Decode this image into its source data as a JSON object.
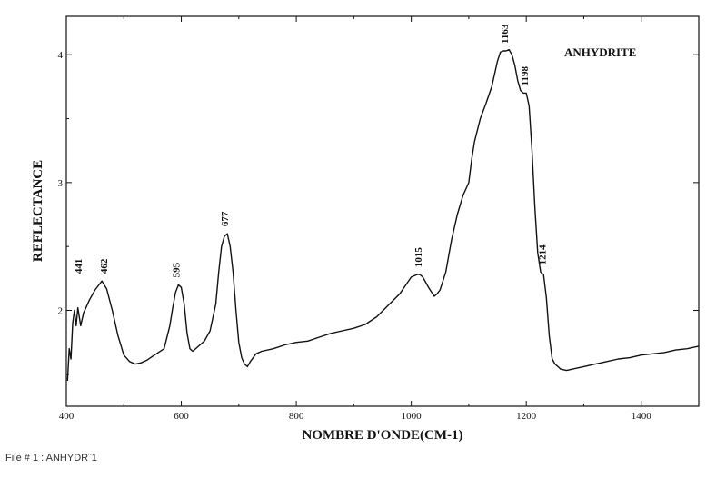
{
  "chart_data": {
    "type": "line",
    "title": "ANHYDRITE",
    "xlabel": "NOMBRE D'ONDE(CM-1)",
    "ylabel": "REFLECTANCE",
    "xlim": [
      400,
      1500
    ],
    "ylim": [
      1.25,
      4.3
    ],
    "x_ticks": [
      400,
      600,
      800,
      1000,
      1200,
      1400
    ],
    "y_ticks": [
      2,
      3,
      4
    ],
    "peak_labels": [
      {
        "text": "441",
        "x": 441,
        "y": 2.23
      },
      {
        "text": "462",
        "x": 462,
        "y": 2.23
      },
      {
        "text": "595",
        "x": 597,
        "y": 2.2
      },
      {
        "text": "677",
        "x": 681,
        "y": 2.6
      },
      {
        "text": "1015",
        "x": 1018,
        "y": 2.28
      },
      {
        "text": "1163",
        "x": 1168,
        "y": 4.03
      },
      {
        "text": "1198",
        "x": 1203,
        "y": 3.7
      },
      {
        "text": "1214",
        "x": 1234,
        "y": 2.3
      }
    ],
    "series": [
      {
        "x": [
          402,
          405,
          408,
          411,
          414,
          417,
          420,
          425,
          430,
          440,
          450,
          462,
          470,
          480,
          490,
          500,
          510,
          520,
          530,
          540,
          550,
          560,
          570,
          580,
          585,
          590,
          595,
          600,
          605,
          610,
          615,
          620,
          630,
          640,
          650,
          660,
          665,
          670,
          675,
          680,
          685,
          690,
          695,
          700,
          705,
          710,
          715,
          720,
          730,
          740,
          760,
          780,
          800,
          820,
          840,
          860,
          880,
          900,
          920,
          940,
          960,
          980,
          1000,
          1010,
          1015,
          1020,
          1025,
          1030,
          1040,
          1045,
          1050,
          1060,
          1070,
          1080,
          1090,
          1100,
          1105,
          1110,
          1120,
          1130,
          1140,
          1150,
          1155,
          1160,
          1165,
          1170,
          1175,
          1180,
          1185,
          1190,
          1195,
          1200,
          1205,
          1210,
          1215,
          1220,
          1225,
          1230,
          1235,
          1240,
          1245,
          1250,
          1255,
          1260,
          1270,
          1280,
          1290,
          1300,
          1320,
          1340,
          1360,
          1380,
          1400,
          1420,
          1440,
          1460,
          1480,
          1500
        ],
        "y": [
          1.45,
          1.7,
          1.62,
          1.9,
          2.0,
          1.88,
          2.02,
          1.88,
          1.98,
          2.08,
          2.16,
          2.23,
          2.17,
          2.0,
          1.8,
          1.65,
          1.6,
          1.58,
          1.59,
          1.61,
          1.64,
          1.67,
          1.7,
          1.88,
          2.02,
          2.14,
          2.2,
          2.18,
          2.05,
          1.82,
          1.7,
          1.68,
          1.72,
          1.76,
          1.84,
          2.05,
          2.3,
          2.5,
          2.58,
          2.6,
          2.5,
          2.3,
          2.0,
          1.75,
          1.63,
          1.58,
          1.56,
          1.6,
          1.66,
          1.68,
          1.7,
          1.73,
          1.75,
          1.76,
          1.79,
          1.82,
          1.84,
          1.86,
          1.89,
          1.95,
          2.04,
          2.13,
          2.26,
          2.28,
          2.28,
          2.26,
          2.22,
          2.18,
          2.11,
          2.13,
          2.16,
          2.3,
          2.55,
          2.75,
          2.9,
          3.0,
          3.18,
          3.32,
          3.5,
          3.62,
          3.75,
          3.95,
          4.02,
          4.03,
          4.03,
          4.04,
          4.0,
          3.92,
          3.8,
          3.72,
          3.7,
          3.7,
          3.6,
          3.25,
          2.8,
          2.45,
          2.3,
          2.28,
          2.1,
          1.8,
          1.62,
          1.58,
          1.56,
          1.54,
          1.53,
          1.54,
          1.55,
          1.56,
          1.58,
          1.6,
          1.62,
          1.63,
          1.65,
          1.66,
          1.67,
          1.69,
          1.7,
          1.72
        ]
      }
    ]
  },
  "footer": {
    "file_label": "File # 1 : ANHYDR˜1"
  }
}
